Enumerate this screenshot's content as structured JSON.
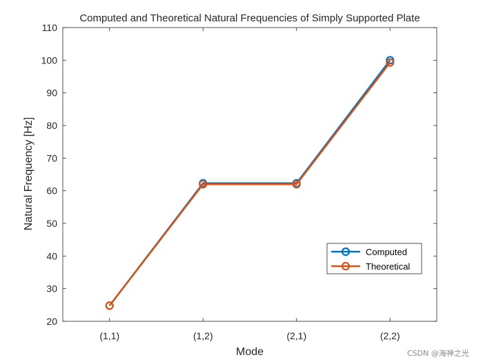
{
  "chart_data": {
    "type": "line",
    "title": "Computed and Theoretical Natural Frequencies of Simply Supported Plate",
    "xlabel": "Mode",
    "ylabel": "Natural Frequency [Hz]",
    "categories": [
      "(1,1)",
      "(1,2)",
      "(2,1)",
      "(2,2)"
    ],
    "ylim": [
      20,
      110
    ],
    "yticks": [
      20,
      30,
      40,
      50,
      60,
      70,
      80,
      90,
      100,
      110
    ],
    "grid": false,
    "legend_position": "lower-right",
    "marker": "circle",
    "series": [
      {
        "name": "Computed",
        "color": "#0072BD",
        "values": [
          24.8,
          62.3,
          62.3,
          100.0
        ]
      },
      {
        "name": "Theoretical",
        "color": "#D95319",
        "values": [
          24.8,
          62.0,
          62.0,
          99.3
        ]
      }
    ]
  },
  "watermark": "CSDN @海神之光"
}
